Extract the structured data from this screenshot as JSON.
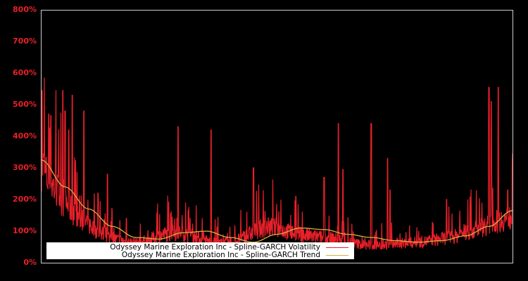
{
  "chart_data": {
    "type": "line",
    "title": "",
    "xlabel": "",
    "ylabel": "",
    "ylim": [
      0,
      800
    ],
    "ytick_labels": [
      "0%",
      "100%",
      "200%",
      "300%",
      "400%",
      "500%",
      "600%",
      "700%",
      "800%"
    ],
    "yticks": [
      0,
      100,
      200,
      300,
      400,
      500,
      600,
      700,
      800
    ],
    "grid": false,
    "legend_position": "lower left",
    "background": "#000000",
    "axis_color": "#cccccc",
    "tick_label_color": "#e8202a",
    "series": [
      {
        "name": "Odyssey Marine Exploration Inc - Spline-GARCH Volatility",
        "color": "#e8202a",
        "x_frac": [
          0.0,
          0.01,
          0.02,
          0.03,
          0.04,
          0.05,
          0.06,
          0.07,
          0.08,
          0.1,
          0.12,
          0.14,
          0.16,
          0.18,
          0.2,
          0.22,
          0.24,
          0.26,
          0.28,
          0.3,
          0.32,
          0.34,
          0.36,
          0.38,
          0.4,
          0.42,
          0.44,
          0.46,
          0.48,
          0.5,
          0.52,
          0.54,
          0.56,
          0.58,
          0.6,
          0.62,
          0.64,
          0.66,
          0.68,
          0.7,
          0.72,
          0.74,
          0.76,
          0.78,
          0.8,
          0.82,
          0.84,
          0.86,
          0.88,
          0.9,
          0.92,
          0.94,
          0.96,
          0.98,
          1.0
        ],
        "base": [
          300,
          260,
          240,
          220,
          200,
          180,
          165,
          150,
          135,
          115,
          95,
          80,
          70,
          62,
          60,
          65,
          75,
          85,
          90,
          88,
          80,
          70,
          62,
          58,
          60,
          70,
          85,
          100,
          108,
          105,
          95,
          88,
          82,
          78,
          75,
          72,
          65,
          60,
          55,
          52,
          52,
          55,
          58,
          60,
          62,
          65,
          70,
          75,
          80,
          90,
          100,
          110,
          120,
          130,
          140
        ],
        "spikes": [
          {
            "x": 0.001,
            "v": 545
          },
          {
            "x": 0.005,
            "v": 340
          },
          {
            "x": 0.015,
            "v": 470
          },
          {
            "x": 0.02,
            "v": 465
          },
          {
            "x": 0.045,
            "v": 545
          },
          {
            "x": 0.05,
            "v": 480
          },
          {
            "x": 0.058,
            "v": 420
          },
          {
            "x": 0.065,
            "v": 530
          },
          {
            "x": 0.09,
            "v": 480
          },
          {
            "x": 0.12,
            "v": 220
          },
          {
            "x": 0.14,
            "v": 280
          },
          {
            "x": 0.18,
            "v": 140
          },
          {
            "x": 0.29,
            "v": 430
          },
          {
            "x": 0.36,
            "v": 420
          },
          {
            "x": 0.45,
            "v": 300
          },
          {
            "x": 0.54,
            "v": 210
          },
          {
            "x": 0.6,
            "v": 270
          },
          {
            "x": 0.63,
            "v": 440
          },
          {
            "x": 0.64,
            "v": 295
          },
          {
            "x": 0.7,
            "v": 440
          },
          {
            "x": 0.735,
            "v": 330
          },
          {
            "x": 0.74,
            "v": 230
          },
          {
            "x": 0.86,
            "v": 200
          },
          {
            "x": 0.95,
            "v": 555
          },
          {
            "x": 0.955,
            "v": 510
          },
          {
            "x": 0.97,
            "v": 555
          },
          {
            "x": 0.99,
            "v": 230
          }
        ]
      },
      {
        "name": "Odyssey Marine Exploration Inc - Spline-GARCH Trend",
        "color": "#d4b040",
        "x_frac": [
          0.0,
          0.05,
          0.1,
          0.15,
          0.2,
          0.25,
          0.3,
          0.35,
          0.4,
          0.45,
          0.5,
          0.55,
          0.6,
          0.65,
          0.7,
          0.75,
          0.8,
          0.85,
          0.9,
          0.95,
          1.0
        ],
        "values": [
          325,
          240,
          170,
          115,
          80,
          75,
          95,
          100,
          80,
          65,
          90,
          110,
          105,
          90,
          80,
          70,
          65,
          70,
          85,
          115,
          165
        ]
      }
    ]
  },
  "legend": {
    "volatility_label": "Odyssey Marine Exploration Inc - Spline-GARCH Volatility",
    "trend_label": "Odyssey Marine Exploration Inc - Spline-GARCH Trend",
    "volatility_color": "#e8202a",
    "trend_color": "#d4b040"
  }
}
